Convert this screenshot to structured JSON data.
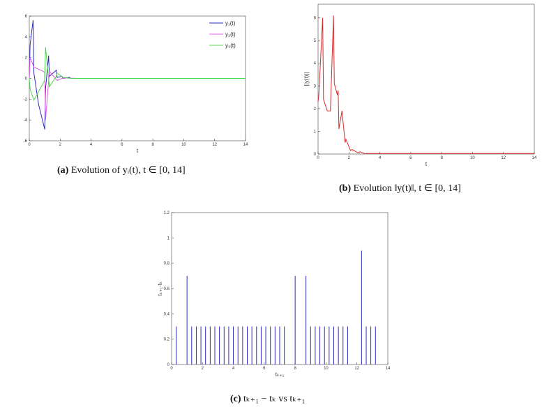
{
  "captions": {
    "a_label": "(a)",
    "a_text": "Evolution of yᵢ(t),  t ∈ [0, 14]",
    "b_label": "(b)",
    "b_text": "Evolution ‖y(t)‖,  t ∈ [0, 14]",
    "c_label": "(c)",
    "c_text": "tₖ₊₁ − tₖ vs tₖ₊₁"
  },
  "chart_data": [
    {
      "type": "line",
      "xlabel": "t",
      "ylabel": "",
      "xlim": [
        0,
        14
      ],
      "ylim": [
        -6,
        6
      ],
      "xticks": [
        0,
        2,
        4,
        6,
        8,
        10,
        12,
        14
      ],
      "yticks": [
        -6,
        -4,
        -2,
        0,
        2,
        4,
        6
      ],
      "legend_position": "top-right",
      "series": [
        {
          "name": "y₁(t)",
          "color": "#2b2bbf",
          "x": [
            0,
            0.05,
            0.25,
            0.3,
            0.6,
            1.0,
            1.05,
            1.25,
            1.3,
            1.75,
            1.8,
            2.1,
            2.2,
            2.6,
            2.7,
            3.1,
            14
          ],
          "y": [
            0,
            3.2,
            5.6,
            0.5,
            -2.5,
            -4.9,
            -1.0,
            2.2,
            0.2,
            0.8,
            0.1,
            0.2,
            0.0,
            0.1,
            0.0,
            0.0,
            0.0
          ]
        },
        {
          "name": "y₂(t)",
          "color": "#e05ce0",
          "x": [
            0,
            0.05,
            0.3,
            1.0,
            1.05,
            1.3,
            1.8,
            2.2,
            3.1,
            14
          ],
          "y": [
            0,
            2.0,
            1.1,
            0.6,
            -4.0,
            0.7,
            -0.2,
            0.05,
            0.0,
            0.0
          ]
        },
        {
          "name": "y₃(t)",
          "color": "#4cd44c",
          "x": [
            0,
            0.05,
            0.3,
            1.0,
            1.05,
            1.3,
            1.75,
            1.8,
            2.2,
            2.7,
            3.1,
            14
          ],
          "y": [
            0,
            -1.0,
            -2.1,
            -0.2,
            3.0,
            -0.8,
            0.2,
            0.5,
            0.1,
            0.0,
            0.0,
            0.0
          ]
        }
      ]
    },
    {
      "type": "line",
      "xlabel": "t",
      "ylabel": "||y(t)||",
      "xlim": [
        0,
        14
      ],
      "ylim": [
        0,
        6.6
      ],
      "xticks": [
        0,
        2,
        4,
        6,
        8,
        10,
        12,
        14
      ],
      "yticks": [
        0,
        1,
        2,
        3,
        4,
        5,
        6
      ],
      "series": [
        {
          "name": "",
          "color": "#d62a2a",
          "x": [
            0,
            0.05,
            0.3,
            0.35,
            0.6,
            0.8,
            1.0,
            1.05,
            1.25,
            1.3,
            1.35,
            1.55,
            1.75,
            1.8,
            2.1,
            2.2,
            2.6,
            2.7,
            3.1,
            3.15,
            14
          ],
          "y": [
            2.3,
            2.6,
            6.0,
            2.4,
            1.9,
            1.9,
            6.1,
            3.1,
            2.6,
            2.8,
            1.1,
            1.9,
            0.5,
            0.65,
            0.15,
            0.2,
            0.05,
            0.1,
            0.0,
            0.02,
            0.02
          ]
        }
      ]
    },
    {
      "type": "bar",
      "xlabel": "tₖ₊₁",
      "ylabel": "tₖ₊₁-tₖ",
      "xlim": [
        0,
        14
      ],
      "ylim": [
        0,
        1.2
      ],
      "xticks": [
        0,
        2,
        4,
        6,
        8,
        10,
        12,
        14
      ],
      "yticks": [
        0,
        0.2,
        0.4,
        0.6,
        0.8,
        1,
        1.2
      ],
      "color": "#2b2bbf",
      "x": [
        0.3,
        1.0,
        1.3,
        1.6,
        1.9,
        2.2,
        2.5,
        2.8,
        3.1,
        3.4,
        3.7,
        4.0,
        4.3,
        4.6,
        4.9,
        5.2,
        5.5,
        5.8,
        6.1,
        6.4,
        6.7,
        7.0,
        7.3,
        8.0,
        8.7,
        9.0,
        9.3,
        9.6,
        9.9,
        10.2,
        10.5,
        10.8,
        11.1,
        11.4,
        12.3,
        12.6,
        12.9,
        13.2
      ],
      "values": [
        0.3,
        0.7,
        0.3,
        0.3,
        0.3,
        0.3,
        0.3,
        0.3,
        0.3,
        0.3,
        0.3,
        0.3,
        0.3,
        0.3,
        0.3,
        0.3,
        0.3,
        0.3,
        0.3,
        0.3,
        0.3,
        0.3,
        0.3,
        0.7,
        0.7,
        0.3,
        0.3,
        0.3,
        0.3,
        0.3,
        0.3,
        0.3,
        0.3,
        0.3,
        0.9,
        0.3,
        0.3,
        0.3
      ]
    }
  ]
}
